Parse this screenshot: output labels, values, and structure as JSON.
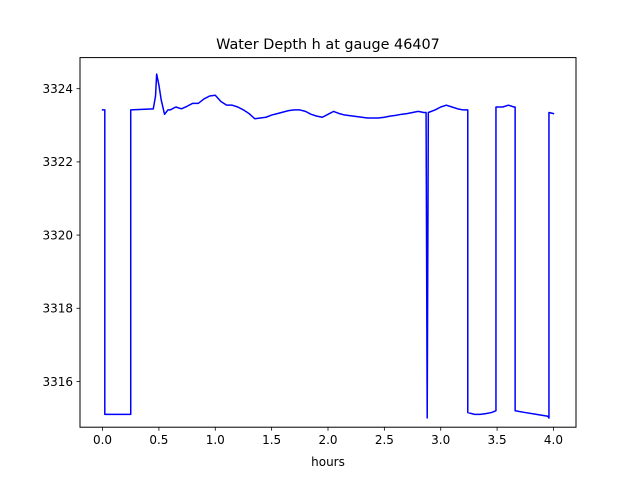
{
  "chart_data": {
    "type": "line",
    "title": "Water Depth h at gauge 46407",
    "xlabel": "hours",
    "ylabel": "",
    "xlim": [
      -0.2,
      4.2
    ],
    "ylim": [
      3314.75,
      3324.85
    ],
    "xticks": [
      0.0,
      0.5,
      1.0,
      1.5,
      2.0,
      2.5,
      3.0,
      3.5,
      4.0
    ],
    "xtick_labels": [
      "0.0",
      "0.5",
      "1.0",
      "1.5",
      "2.0",
      "2.5",
      "3.0",
      "3.5",
      "4.0"
    ],
    "yticks": [
      3316,
      3318,
      3320,
      3322,
      3324
    ],
    "ytick_labels": [
      "3316",
      "3318",
      "3320",
      "3322",
      "3324"
    ],
    "grid": false,
    "series": [
      {
        "color": "#0000ff",
        "x": [
          0.0,
          0.02,
          0.02,
          0.25,
          0.25,
          0.45,
          0.47,
          0.48,
          0.5,
          0.52,
          0.55,
          0.58,
          0.6,
          0.65,
          0.7,
          0.75,
          0.8,
          0.85,
          0.9,
          0.95,
          1.0,
          1.05,
          1.1,
          1.15,
          1.2,
          1.25,
          1.3,
          1.35,
          1.4,
          1.45,
          1.5,
          1.55,
          1.6,
          1.65,
          1.7,
          1.75,
          1.8,
          1.85,
          1.9,
          1.95,
          2.0,
          2.05,
          2.1,
          2.15,
          2.2,
          2.25,
          2.3,
          2.35,
          2.4,
          2.45,
          2.5,
          2.55,
          2.6,
          2.65,
          2.7,
          2.75,
          2.8,
          2.85,
          2.87,
          2.88,
          2.88,
          2.89,
          2.89,
          2.95,
          3.0,
          3.05,
          3.1,
          3.15,
          3.2,
          3.24,
          3.24,
          3.3,
          3.35,
          3.4,
          3.45,
          3.49,
          3.49,
          3.55,
          3.6,
          3.65,
          3.66,
          3.66,
          3.75,
          3.85,
          3.95,
          3.96,
          3.96,
          4.0
        ],
        "values": [
          3323.42,
          3323.42,
          3315.1,
          3315.1,
          3323.42,
          3323.45,
          3323.8,
          3324.4,
          3324.1,
          3323.7,
          3323.3,
          3323.42,
          3323.42,
          3323.5,
          3323.45,
          3323.52,
          3323.6,
          3323.6,
          3323.72,
          3323.8,
          3323.82,
          3323.65,
          3323.55,
          3323.55,
          3323.5,
          3323.42,
          3323.32,
          3323.18,
          3323.2,
          3323.22,
          3323.28,
          3323.32,
          3323.36,
          3323.4,
          3323.42,
          3323.42,
          3323.38,
          3323.3,
          3323.25,
          3323.22,
          3323.3,
          3323.38,
          3323.32,
          3323.28,
          3323.26,
          3323.24,
          3323.22,
          3323.2,
          3323.2,
          3323.2,
          3323.22,
          3323.25,
          3323.27,
          3323.3,
          3323.32,
          3323.35,
          3323.38,
          3323.35,
          3323.35,
          3315.0,
          3315.0,
          3323.35,
          3323.35,
          3323.42,
          3323.5,
          3323.55,
          3323.5,
          3323.45,
          3323.42,
          3323.42,
          3315.15,
          3315.1,
          3315.1,
          3315.12,
          3315.15,
          3315.2,
          3323.5,
          3323.5,
          3323.55,
          3323.5,
          3323.5,
          3315.2,
          3315.15,
          3315.1,
          3315.05,
          3315.0,
          3323.35,
          3323.32
        ]
      }
    ]
  }
}
